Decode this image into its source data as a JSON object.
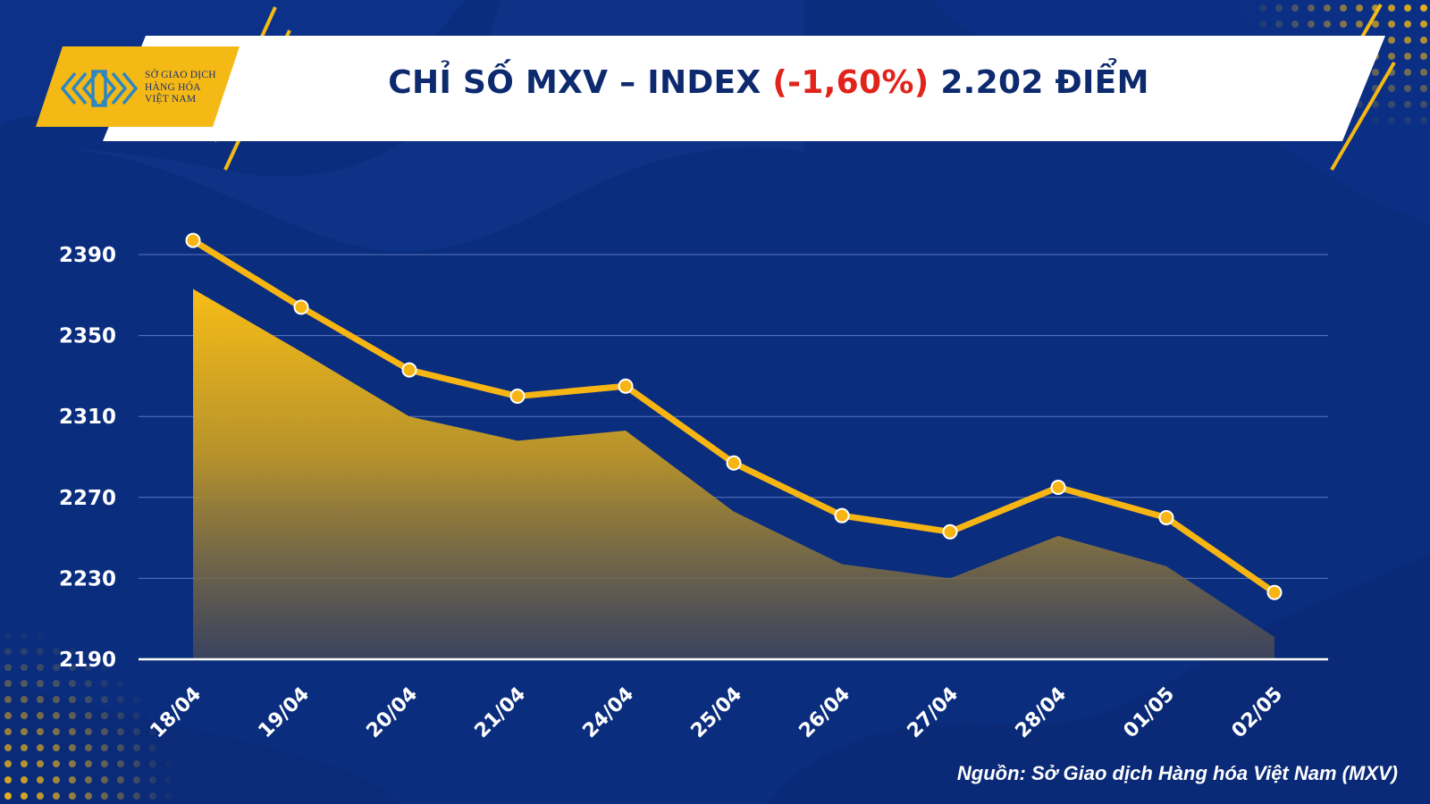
{
  "header": {
    "title_prefix": "CHỈ SỐ MXV – INDEX ",
    "title_change": "(-1,60%)",
    "title_suffix": " 2.202 ĐIỂM"
  },
  "logo": {
    "line1": "SỞ GIAO DỊCH",
    "line2": "HÀNG HÓA",
    "line3": "VIỆT NAM"
  },
  "source": "Nguồn: Sở Giao dịch Hàng hóa Việt Nam (MXV)",
  "colors": {
    "background": "#0a2d7e",
    "line": "#f7b514",
    "area_top": "#f5b915",
    "negative": "#e0241b",
    "title": "#0d2a6e"
  },
  "chart_data": {
    "type": "line",
    "categories": [
      "18/04",
      "19/04",
      "20/04",
      "21/04",
      "24/04",
      "25/04",
      "26/04",
      "27/04",
      "28/04",
      "01/05",
      "02/05"
    ],
    "values": [
      2397,
      2364,
      2333,
      2320,
      2325,
      2287,
      2261,
      2253,
      2275,
      2260,
      2223
    ],
    "area_values": [
      2373,
      2342,
      2310,
      2298,
      2303,
      2263,
      2237,
      2230,
      2251,
      2236,
      2201
    ],
    "yticks": [
      2390,
      2350,
      2310,
      2270,
      2230,
      2190
    ],
    "ylim": [
      2190,
      2400
    ],
    "grid": true,
    "xlabel": "",
    "ylabel": ""
  }
}
